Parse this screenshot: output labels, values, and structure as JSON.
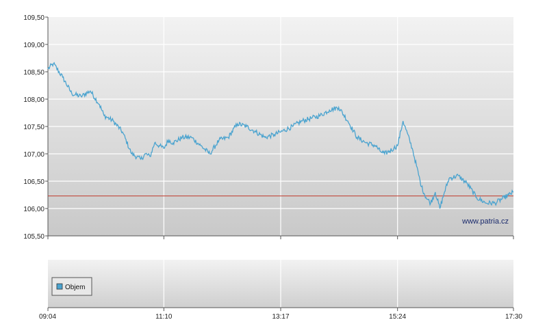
{
  "chart_data": [
    {
      "type": "line",
      "title": "",
      "xlabel": "",
      "ylabel": "",
      "ylim": [
        105.5,
        109.5
      ],
      "y_ticks": [
        "109,50",
        "109,00",
        "108,50",
        "108,00",
        "107,50",
        "107,00",
        "106,50",
        "106,00",
        "105,50"
      ],
      "y_tick_values": [
        109.5,
        109.0,
        108.5,
        108.0,
        107.5,
        107.0,
        106.5,
        106.0,
        105.5
      ],
      "x_ticks": [
        "09:04",
        "11:10",
        "13:17",
        "15:24",
        "17:30"
      ],
      "xlim": [
        "09:04",
        "17:30"
      ],
      "grid": true,
      "colors": {
        "line": "#4aa3cf",
        "reference": "#c0392b"
      },
      "reference_line": {
        "value": 106.23
      },
      "watermark": "www.patria.cz",
      "series": [
        {
          "x": [
            "09:04",
            "09:10",
            "09:20",
            "09:30",
            "09:40",
            "09:50",
            "10:00",
            "10:05",
            "10:15",
            "10:25",
            "10:35",
            "10:45",
            "10:50",
            "10:55",
            "11:00",
            "11:05",
            "11:10",
            "11:15",
            "11:20",
            "11:30",
            "11:40",
            "11:50",
            "12:00",
            "12:10",
            "12:20",
            "12:30",
            "12:40",
            "12:50",
            "13:00",
            "13:10",
            "13:17",
            "13:30",
            "13:40",
            "13:50",
            "14:00",
            "14:10",
            "14:20",
            "14:30",
            "14:40",
            "14:50",
            "15:00",
            "15:05",
            "15:10",
            "15:20",
            "15:24",
            "15:30",
            "15:40",
            "15:50",
            "15:55",
            "16:00",
            "16:05",
            "16:10",
            "16:15",
            "16:20",
            "16:30",
            "16:40",
            "16:50",
            "17:00",
            "17:10",
            "17:20",
            "17:25",
            "17:30"
          ],
          "y": [
            108.55,
            108.65,
            108.4,
            108.1,
            108.05,
            108.15,
            107.9,
            107.7,
            107.6,
            107.4,
            107.0,
            106.9,
            107.0,
            106.95,
            107.2,
            107.15,
            107.1,
            107.25,
            107.2,
            107.3,
            107.3,
            107.15,
            107.0,
            107.25,
            107.3,
            107.55,
            107.5,
            107.4,
            107.3,
            107.35,
            107.4,
            107.5,
            107.6,
            107.65,
            107.7,
            107.8,
            107.85,
            107.6,
            107.3,
            107.2,
            107.15,
            107.05,
            107.0,
            107.1,
            107.15,
            107.6,
            107.1,
            106.4,
            106.2,
            106.1,
            106.3,
            106.0,
            106.3,
            106.55,
            106.6,
            106.45,
            106.2,
            106.1,
            106.1,
            106.2,
            106.25,
            106.3
          ]
        }
      ]
    },
    {
      "type": "bar",
      "title": "",
      "legend": [
        "Objem"
      ],
      "x_ticks": [
        "09:04",
        "11:10",
        "13:17",
        "15:24",
        "17:30"
      ],
      "grid": true,
      "series": [
        {
          "name": "Objem",
          "values": []
        }
      ],
      "colors": {
        "legend_swatch": "#4aa3cf"
      }
    }
  ]
}
